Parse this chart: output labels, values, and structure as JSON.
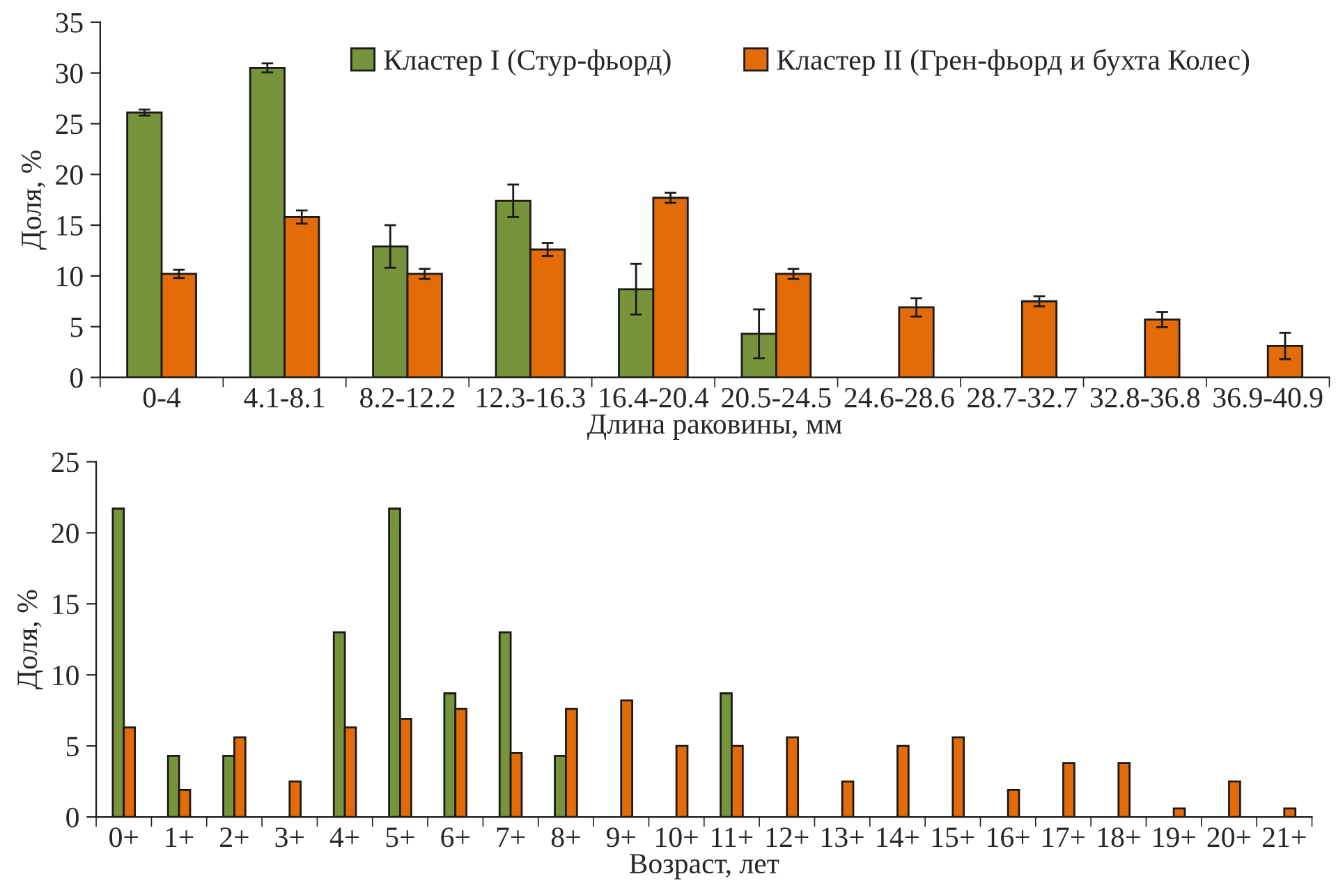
{
  "chart_data": [
    {
      "type": "bar",
      "xlabel": "Длина раковины, мм",
      "ylabel": "Доля, %",
      "categories": [
        "0-4",
        "4.1-8.1",
        "8.2-12.2",
        "12.3-16.3",
        "16.4-20.4",
        "20.5-24.5",
        "24.6-28.6",
        "28.7-32.7",
        "32.8-36.8",
        "36.9-40.9"
      ],
      "series": [
        {
          "name": "Кластер I (Стур-фьорд)",
          "color": "#77933c",
          "values": [
            26.1,
            30.5,
            12.9,
            17.4,
            8.7,
            4.3,
            null,
            null,
            null,
            null
          ],
          "errors": [
            0.3,
            0.45,
            2.1,
            1.6,
            2.5,
            2.4,
            null,
            null,
            null,
            null
          ]
        },
        {
          "name": "Кластер II (Грен-фьорд и бухта Колес)",
          "color": "#e36c09",
          "values": [
            10.2,
            15.8,
            10.2,
            12.6,
            17.7,
            10.2,
            6.9,
            7.5,
            5.7,
            3.1
          ],
          "errors": [
            0.4,
            0.65,
            0.5,
            0.65,
            0.5,
            0.5,
            0.9,
            0.5,
            0.75,
            1.3
          ]
        }
      ],
      "ylim": [
        0,
        35
      ],
      "yticks": [
        0,
        5,
        10,
        15,
        20,
        25,
        30,
        35
      ],
      "grid": false,
      "legend": "top"
    },
    {
      "type": "bar",
      "xlabel": "Возраст, лет",
      "ylabel": "Доля, %",
      "categories": [
        "0+",
        "1+",
        "2+",
        "3+",
        "4+",
        "5+",
        "6+",
        "7+",
        "8+",
        "9+",
        "10+",
        "11+",
        "12+",
        "13+",
        "14+",
        "15+",
        "16+",
        "17+",
        "18+",
        "19+",
        "20+",
        "21+"
      ],
      "series": [
        {
          "color": "#77933c",
          "values": [
            21.7,
            4.3,
            4.3,
            null,
            13.0,
            21.7,
            8.7,
            13.0,
            4.3,
            null,
            null,
            8.7,
            null,
            null,
            null,
            null,
            null,
            null,
            null,
            null,
            null,
            null
          ]
        },
        {
          "color": "#e36c09",
          "values": [
            6.3,
            1.9,
            5.6,
            2.5,
            6.3,
            6.9,
            7.6,
            4.5,
            7.6,
            8.2,
            5.0,
            5.0,
            5.6,
            2.5,
            5.0,
            5.6,
            1.9,
            3.8,
            3.8,
            0.6,
            2.5,
            0.6
          ]
        }
      ],
      "ylim": [
        0,
        25
      ],
      "yticks": [
        0,
        5,
        10,
        15,
        20,
        25
      ],
      "grid": false,
      "legend": false
    }
  ]
}
